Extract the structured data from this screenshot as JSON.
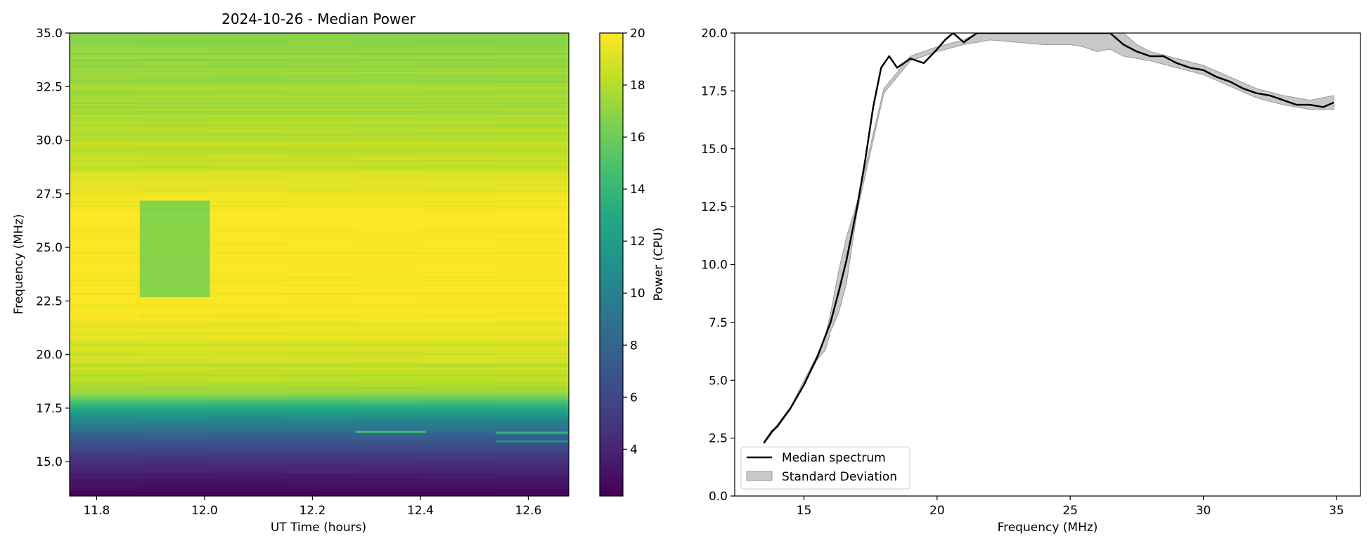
{
  "chart_data": [
    {
      "type": "heatmap",
      "title": "2024-10-26 - Median Power",
      "xlabel": "UT Time (hours)",
      "ylabel": "Frequency (MHz)",
      "xlim": [
        11.75,
        12.675
      ],
      "ylim": [
        13.4,
        35.0
      ],
      "x_ticks": [
        "11.8",
        "12.0",
        "12.2",
        "12.4",
        "12.6"
      ],
      "y_ticks": [
        "15.0",
        "17.5",
        "20.0",
        "22.5",
        "25.0",
        "27.5",
        "30.0",
        "32.5",
        "35.0"
      ],
      "colorbar": {
        "label": "Power (CPU)",
        "range": [
          2.2,
          20
        ],
        "ticks": [
          "4",
          "6",
          "8",
          "10",
          "12",
          "14",
          "16",
          "18",
          "20"
        ],
        "colormap": "viridis"
      },
      "frequency_profile": [
        {
          "f": 13.4,
          "p": 2.3
        },
        {
          "f": 14.0,
          "p": 3.0
        },
        {
          "f": 15.0,
          "p": 4.6
        },
        {
          "f": 16.0,
          "p": 7.0
        },
        {
          "f": 17.0,
          "p": 10.5
        },
        {
          "f": 17.6,
          "p": 13.5
        },
        {
          "f": 18.2,
          "p": 17.3
        },
        {
          "f": 19.0,
          "p": 18.2
        },
        {
          "f": 20.0,
          "p": 18.6
        },
        {
          "f": 21.5,
          "p": 19.7
        },
        {
          "f": 23.0,
          "p": 20.0
        },
        {
          "f": 26.0,
          "p": 20.0
        },
        {
          "f": 27.5,
          "p": 19.4
        },
        {
          "f": 29.0,
          "p": 18.4
        },
        {
          "f": 31.0,
          "p": 17.8
        },
        {
          "f": 33.0,
          "p": 17.3
        },
        {
          "f": 35.0,
          "p": 16.8
        }
      ],
      "anomaly_block": {
        "t_start": 11.88,
        "t_end": 12.01,
        "f_start": 22.7,
        "f_end": 27.2,
        "power": 16.8
      }
    },
    {
      "type": "line",
      "title": "",
      "xlabel": "Frequency (MHz)",
      "ylabel": "",
      "xlim": [
        12.4,
        35.9
      ],
      "ylim": [
        0.0,
        20.0
      ],
      "x_ticks": [
        "15",
        "20",
        "25",
        "30",
        "35"
      ],
      "y_ticks": [
        "0.0",
        "2.5",
        "5.0",
        "7.5",
        "10.0",
        "12.5",
        "15.0",
        "17.5",
        "20.0"
      ],
      "legend": {
        "placement": "lower-left",
        "entries": [
          "Median spectrum",
          "Standard Deviation"
        ]
      },
      "series": [
        {
          "name": "Median spectrum",
          "x": [
            13.5,
            13.8,
            14.0,
            14.5,
            15.0,
            15.5,
            16.0,
            16.3,
            16.6,
            17.0,
            17.3,
            17.6,
            17.9,
            18.2,
            18.5,
            19.0,
            19.5,
            20.0,
            20.3,
            20.6,
            21.0,
            21.5,
            22.0,
            22.5,
            23.0,
            24.0,
            25.0,
            26.0,
            26.5,
            27.0,
            27.5,
            28.0,
            28.5,
            29.0,
            29.5,
            30.0,
            30.5,
            31.0,
            31.5,
            32.0,
            32.5,
            33.0,
            33.5,
            34.0,
            34.5,
            34.9
          ],
          "y": [
            2.3,
            2.8,
            3.0,
            3.8,
            4.8,
            6.0,
            7.5,
            8.8,
            10.2,
            12.5,
            14.5,
            16.8,
            18.5,
            19.0,
            18.5,
            18.9,
            18.7,
            19.3,
            19.7,
            20.0,
            19.6,
            20.0,
            20.0,
            20.0,
            20.0,
            20.0,
            20.0,
            20.0,
            20.0,
            19.5,
            19.2,
            19.0,
            19.0,
            18.7,
            18.5,
            18.4,
            18.1,
            17.9,
            17.6,
            17.4,
            17.3,
            17.1,
            16.9,
            16.9,
            16.8,
            17.0
          ]
        },
        {
          "name": "Standard Deviation",
          "x": [
            13.5,
            14.5,
            15.5,
            15.8,
            16.0,
            16.3,
            16.6,
            17.0,
            18.0,
            19.0,
            20.0,
            21.0,
            22.0,
            23.0,
            24.0,
            25.0,
            25.5,
            26.0,
            26.5,
            27.0,
            27.5,
            28.0,
            29.0,
            30.0,
            31.0,
            32.0,
            33.0,
            34.0,
            34.9
          ],
          "y": [
            2.3,
            3.8,
            6.0,
            6.6,
            7.5,
            8.8,
            10.2,
            12.5,
            17.5,
            18.9,
            19.3,
            19.6,
            20.0,
            20.0,
            20.0,
            20.0,
            20.0,
            20.0,
            20.0,
            19.5,
            19.2,
            19.0,
            18.7,
            18.4,
            17.9,
            17.4,
            17.1,
            16.9,
            17.0
          ],
          "sd": [
            0.05,
            0.05,
            0.1,
            0.3,
            0.4,
            0.9,
            1.0,
            0.2,
            0.1,
            0.1,
            0.1,
            0.1,
            0.3,
            0.4,
            0.5,
            0.5,
            0.6,
            0.8,
            0.7,
            0.5,
            0.3,
            0.2,
            0.2,
            0.2,
            0.2,
            0.2,
            0.2,
            0.2,
            0.3
          ]
        }
      ]
    }
  ]
}
